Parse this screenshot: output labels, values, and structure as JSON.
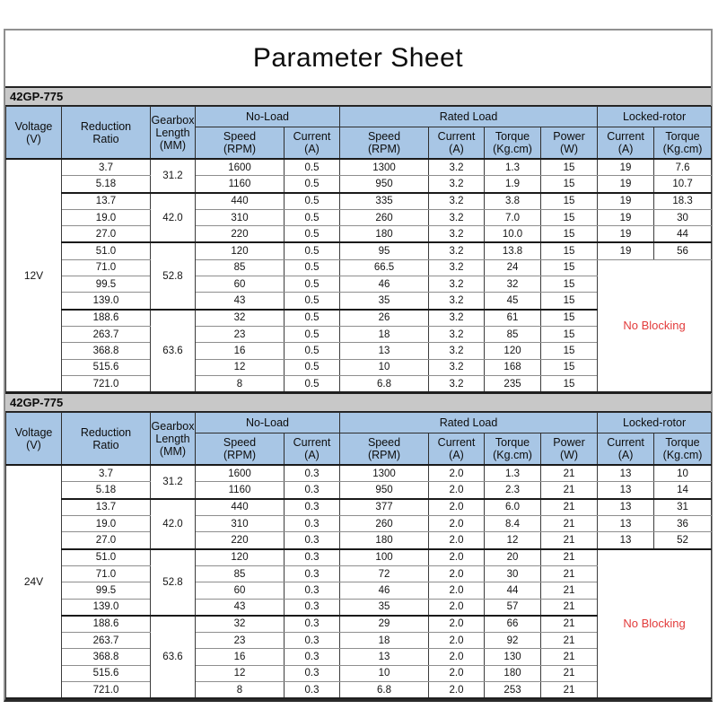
{
  "title": "Parameter Sheet",
  "colors": {
    "header_blue": "#a8c6e5",
    "model_bar_gray": "#c8c8c8",
    "no_blocking_red": "#e23b3b"
  },
  "header": {
    "voltage": [
      "Voltage",
      "(V)"
    ],
    "reduction": [
      "Reduction",
      "Ratio"
    ],
    "gearbox": [
      "Gearbox",
      "Length",
      "(MM)"
    ],
    "no_load": "No-Load",
    "rated_load": "Rated Load",
    "locked_rotor": "Locked-rotor",
    "speed": [
      "Speed",
      "(RPM)"
    ],
    "current": [
      "Current",
      "(A)"
    ],
    "torque": [
      "Torque",
      "(Kg.cm)"
    ],
    "power": [
      "Power",
      "(W)"
    ]
  },
  "tables": [
    {
      "model": "42GP-775",
      "voltage": "12V",
      "no_blocking": "No Blocking",
      "gearbox_groups": [
        {
          "length": "31.2",
          "rows": 2
        },
        {
          "length": "42.0",
          "rows": 3
        },
        {
          "length": "52.8",
          "rows": 4
        },
        {
          "length": "63.6",
          "rows": 5
        }
      ],
      "rows": [
        [
          "3.7",
          "1600",
          "0.5",
          "1300",
          "3.2",
          "1.3",
          "15",
          "19",
          "7.6"
        ],
        [
          "5.18",
          "1160",
          "0.5",
          "950",
          "3.2",
          "1.9",
          "15",
          "19",
          "10.7"
        ],
        [
          "13.7",
          "440",
          "0.5",
          "335",
          "3.2",
          "3.8",
          "15",
          "19",
          "18.3"
        ],
        [
          "19.0",
          "310",
          "0.5",
          "260",
          "3.2",
          "7.0",
          "15",
          "19",
          "30"
        ],
        [
          "27.0",
          "220",
          "0.5",
          "180",
          "3.2",
          "10.0",
          "15",
          "19",
          "44"
        ],
        [
          "51.0",
          "120",
          "0.5",
          "95",
          "3.2",
          "13.8",
          "15",
          "19",
          "56"
        ],
        [
          "71.0",
          "85",
          "0.5",
          "66.5",
          "3.2",
          "24",
          "15"
        ],
        [
          "99.5",
          "60",
          "0.5",
          "46",
          "3.2",
          "32",
          "15"
        ],
        [
          "139.0",
          "43",
          "0.5",
          "35",
          "3.2",
          "45",
          "15"
        ],
        [
          "188.6",
          "32",
          "0.5",
          "26",
          "3.2",
          "61",
          "15"
        ],
        [
          "263.7",
          "23",
          "0.5",
          "18",
          "3.2",
          "85",
          "15"
        ],
        [
          "368.8",
          "16",
          "0.5",
          "13",
          "3.2",
          "120",
          "15"
        ],
        [
          "515.6",
          "12",
          "0.5",
          "10",
          "3.2",
          "168",
          "15"
        ],
        [
          "721.0",
          "8",
          "0.5",
          "6.8",
          "3.2",
          "235",
          "15"
        ]
      ]
    },
    {
      "model": "42GP-775",
      "voltage": "24V",
      "no_blocking": "No Blocking",
      "gearbox_groups": [
        {
          "length": "31.2",
          "rows": 2
        },
        {
          "length": "42.0",
          "rows": 3
        },
        {
          "length": "52.8",
          "rows": 4
        },
        {
          "length": "63.6",
          "rows": 5
        }
      ],
      "rows": [
        [
          "3.7",
          "1600",
          "0.3",
          "1300",
          "2.0",
          "1.3",
          "21",
          "13",
          "10"
        ],
        [
          "5.18",
          "1160",
          "0.3",
          "950",
          "2.0",
          "2.3",
          "21",
          "13",
          "14"
        ],
        [
          "13.7",
          "440",
          "0.3",
          "377",
          "2.0",
          "6.0",
          "21",
          "13",
          "31"
        ],
        [
          "19.0",
          "310",
          "0.3",
          "260",
          "2.0",
          "8.4",
          "21",
          "13",
          "36"
        ],
        [
          "27.0",
          "220",
          "0.3",
          "180",
          "2.0",
          "12",
          "21",
          "13",
          "52"
        ],
        [
          "51.0",
          "120",
          "0.3",
          "100",
          "2.0",
          "20",
          "21"
        ],
        [
          "71.0",
          "85",
          "0.3",
          "72",
          "2.0",
          "30",
          "21"
        ],
        [
          "99.5",
          "60",
          "0.3",
          "46",
          "2.0",
          "44",
          "21"
        ],
        [
          "139.0",
          "43",
          "0.3",
          "35",
          "2.0",
          "57",
          "21"
        ],
        [
          "188.6",
          "32",
          "0.3",
          "29",
          "2.0",
          "66",
          "21"
        ],
        [
          "263.7",
          "23",
          "0.3",
          "18",
          "2.0",
          "92",
          "21"
        ],
        [
          "368.8",
          "16",
          "0.3",
          "13",
          "2.0",
          "130",
          "21"
        ],
        [
          "515.6",
          "12",
          "0.3",
          "10",
          "2.0",
          "180",
          "21"
        ],
        [
          "721.0",
          "8",
          "0.3",
          "6.8",
          "2.0",
          "253",
          "21"
        ]
      ]
    }
  ]
}
